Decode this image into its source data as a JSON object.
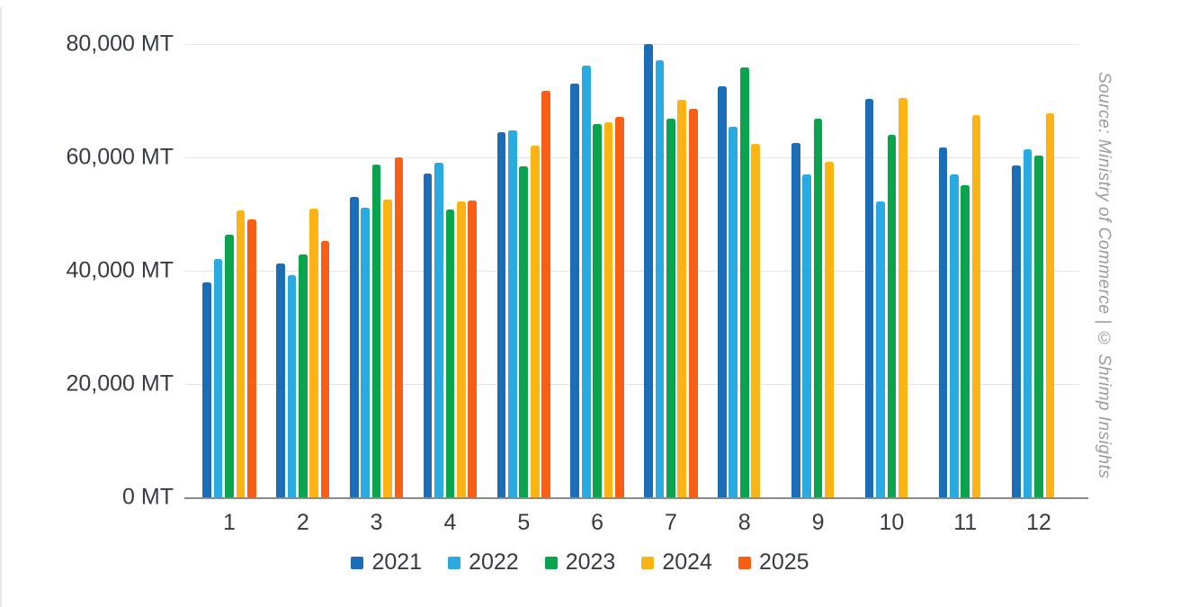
{
  "chart_data": {
    "type": "bar",
    "title": "",
    "xlabel": "",
    "ylabel": "",
    "unit": "MT",
    "categories": [
      "1",
      "2",
      "3",
      "4",
      "5",
      "6",
      "7",
      "8",
      "9",
      "10",
      "11",
      "12"
    ],
    "series": [
      {
        "name": "2021",
        "color": "#1a6db6",
        "values": [
          38000,
          41300,
          53000,
          57200,
          64500,
          73000,
          80000,
          72600,
          62500,
          70300,
          61700,
          58500
        ]
      },
      {
        "name": "2022",
        "color": "#29abe2",
        "values": [
          42100,
          39200,
          51100,
          59000,
          64800,
          76200,
          77200,
          65400,
          57000,
          52200,
          57000,
          61400
        ]
      },
      {
        "name": "2023",
        "color": "#0aa44f",
        "values": [
          46300,
          42800,
          58800,
          50800,
          58400,
          65900,
          66800,
          75800,
          66800,
          64000,
          55100,
          60300
        ]
      },
      {
        "name": "2024",
        "color": "#fcb415",
        "values": [
          50600,
          51000,
          52600,
          52200,
          62100,
          66200,
          70200,
          62400,
          59200,
          70500,
          67500,
          67800
        ]
      },
      {
        "name": "2025",
        "color": "#f85f14",
        "values": [
          49000,
          45300,
          60000,
          52400,
          71700,
          67100,
          68500,
          null,
          null,
          null,
          null,
          null
        ]
      }
    ],
    "ylim": [
      0,
      80000
    ],
    "ytick_step": 20000,
    "ytick_labels": [
      "0 MT",
      "20,000 MT",
      "40,000 MT",
      "60,000 MT",
      "80,000 MT"
    ],
    "grid": "horizontal",
    "legend_position": "bottom",
    "source_note": "Source: Ministry of Commerce | © Shrimp Insights"
  }
}
